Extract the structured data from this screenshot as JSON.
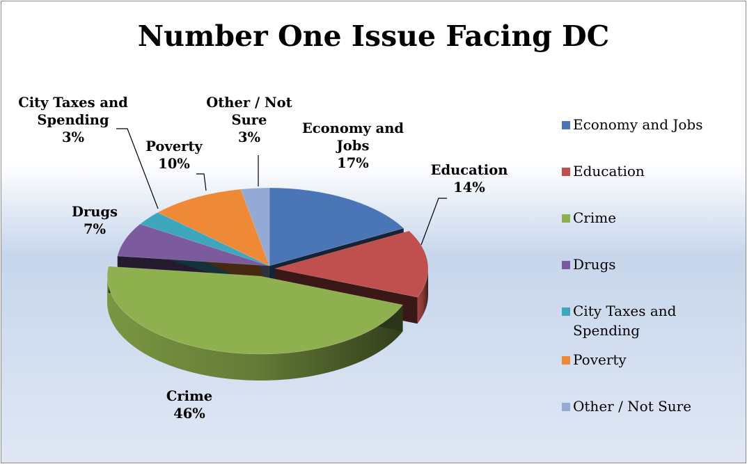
{
  "chart_data": {
    "type": "pie",
    "title": "Number One Issue Facing DC",
    "slices": [
      {
        "name": "Economy and Jobs",
        "label": [
          "Economy and",
          "Jobs",
          "17%"
        ],
        "value": 17,
        "color": "#4a76b8"
      },
      {
        "name": "Education",
        "label": [
          "Education",
          "14%"
        ],
        "value": 14,
        "color": "#c0504d"
      },
      {
        "name": "Crime",
        "label": [
          "Crime",
          "46%"
        ],
        "value": 46,
        "color": "#8fb04e"
      },
      {
        "name": "Drugs",
        "label": [
          "Drugs",
          "7%"
        ],
        "value": 7,
        "color": "#7b5a9e"
      },
      {
        "name": "City Taxes and Spending",
        "label": [
          "City Taxes and",
          "Spending",
          "3%"
        ],
        "value": 3,
        "color": "#3ea6bd"
      },
      {
        "name": "Poverty",
        "label": [
          "Poverty",
          "10%"
        ],
        "value": 10,
        "color": "#ee8a37"
      },
      {
        "name": "Other / Not Sure",
        "label": [
          "Other / Not",
          "Sure",
          "3%"
        ],
        "value": 3,
        "color": "#94a9d3"
      }
    ],
    "legend": {
      "position": "right",
      "items": [
        "Economy and Jobs",
        "Education",
        "Crime",
        "Drugs",
        "City Taxes and Spending",
        "Poverty",
        "Other / Not Sure"
      ]
    },
    "data_labels": "category name and percentage",
    "style": "3D exploded pie"
  }
}
